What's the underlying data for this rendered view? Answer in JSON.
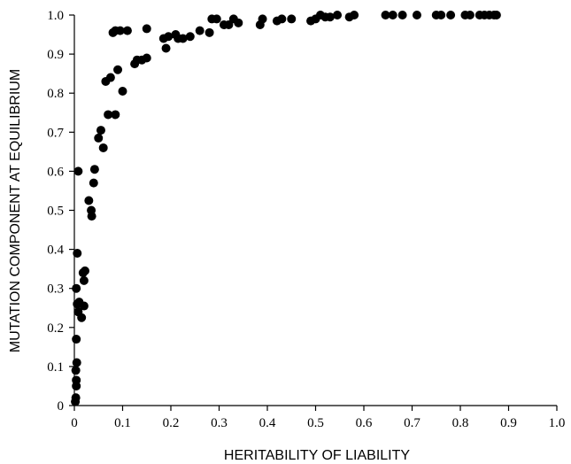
{
  "chart_data": {
    "type": "scatter",
    "title": "",
    "xlabel": "HERITABILITY  OF  LIABILITY",
    "ylabel": "MUTATION  COMPONENT  AT  EQUILIBRIUM",
    "xlim": [
      0,
      1.0
    ],
    "ylim": [
      0,
      1.0
    ],
    "xticks": [
      "0",
      "0.1",
      "0.2",
      "0.3",
      "0.4",
      "0.5",
      "0.6",
      "0.7",
      "0.8",
      "0.9",
      "1.0"
    ],
    "yticks": [
      "0",
      "0.1",
      "0.2",
      "0.3",
      "0.4",
      "0.5",
      "0.6",
      "0.7",
      "0.8",
      "0.9",
      "1.0"
    ],
    "grid": false,
    "legend": "none",
    "marker_color": "#000000",
    "points": [
      [
        0.002,
        0.01
      ],
      [
        0.003,
        0.02
      ],
      [
        0.004,
        0.05
      ],
      [
        0.004,
        0.065
      ],
      [
        0.003,
        0.09
      ],
      [
        0.005,
        0.11
      ],
      [
        0.004,
        0.17
      ],
      [
        0.008,
        0.24
      ],
      [
        0.006,
        0.26
      ],
      [
        0.01,
        0.265
      ],
      [
        0.004,
        0.3
      ],
      [
        0.006,
        0.39
      ],
      [
        0.015,
        0.225
      ],
      [
        0.02,
        0.255
      ],
      [
        0.02,
        0.32
      ],
      [
        0.018,
        0.34
      ],
      [
        0.022,
        0.345
      ],
      [
        0.008,
        0.6
      ],
      [
        0.03,
        0.525
      ],
      [
        0.035,
        0.5
      ],
      [
        0.036,
        0.485
      ],
      [
        0.04,
        0.57
      ],
      [
        0.042,
        0.605
      ],
      [
        0.05,
        0.685
      ],
      [
        0.055,
        0.705
      ],
      [
        0.06,
        0.66
      ],
      [
        0.065,
        0.83
      ],
      [
        0.07,
        0.745
      ],
      [
        0.075,
        0.84
      ],
      [
        0.085,
        0.745
      ],
      [
        0.09,
        0.86
      ],
      [
        0.08,
        0.955
      ],
      [
        0.085,
        0.96
      ],
      [
        0.095,
        0.96
      ],
      [
        0.1,
        0.805
      ],
      [
        0.11,
        0.96
      ],
      [
        0.125,
        0.875
      ],
      [
        0.13,
        0.885
      ],
      [
        0.14,
        0.885
      ],
      [
        0.15,
        0.89
      ],
      [
        0.15,
        0.965
      ],
      [
        0.185,
        0.94
      ],
      [
        0.19,
        0.915
      ],
      [
        0.195,
        0.945
      ],
      [
        0.21,
        0.95
      ],
      [
        0.215,
        0.94
      ],
      [
        0.225,
        0.94
      ],
      [
        0.24,
        0.945
      ],
      [
        0.26,
        0.96
      ],
      [
        0.28,
        0.955
      ],
      [
        0.285,
        0.99
      ],
      [
        0.295,
        0.99
      ],
      [
        0.31,
        0.975
      ],
      [
        0.32,
        0.975
      ],
      [
        0.33,
        0.99
      ],
      [
        0.34,
        0.98
      ],
      [
        0.385,
        0.975
      ],
      [
        0.39,
        0.99
      ],
      [
        0.42,
        0.985
      ],
      [
        0.43,
        0.99
      ],
      [
        0.45,
        0.99
      ],
      [
        0.49,
        0.985
      ],
      [
        0.5,
        0.99
      ],
      [
        0.51,
        1.0
      ],
      [
        0.52,
        0.995
      ],
      [
        0.53,
        0.995
      ],
      [
        0.545,
        1.0
      ],
      [
        0.57,
        0.995
      ],
      [
        0.58,
        1.0
      ],
      [
        0.645,
        1.0
      ],
      [
        0.66,
        1.0
      ],
      [
        0.68,
        1.0
      ],
      [
        0.71,
        1.0
      ],
      [
        0.75,
        1.0
      ],
      [
        0.76,
        1.0
      ],
      [
        0.78,
        1.0
      ],
      [
        0.81,
        1.0
      ],
      [
        0.82,
        1.0
      ],
      [
        0.84,
        1.0
      ],
      [
        0.85,
        1.0
      ],
      [
        0.86,
        1.0
      ],
      [
        0.87,
        1.0
      ],
      [
        0.875,
        1.0
      ]
    ]
  }
}
